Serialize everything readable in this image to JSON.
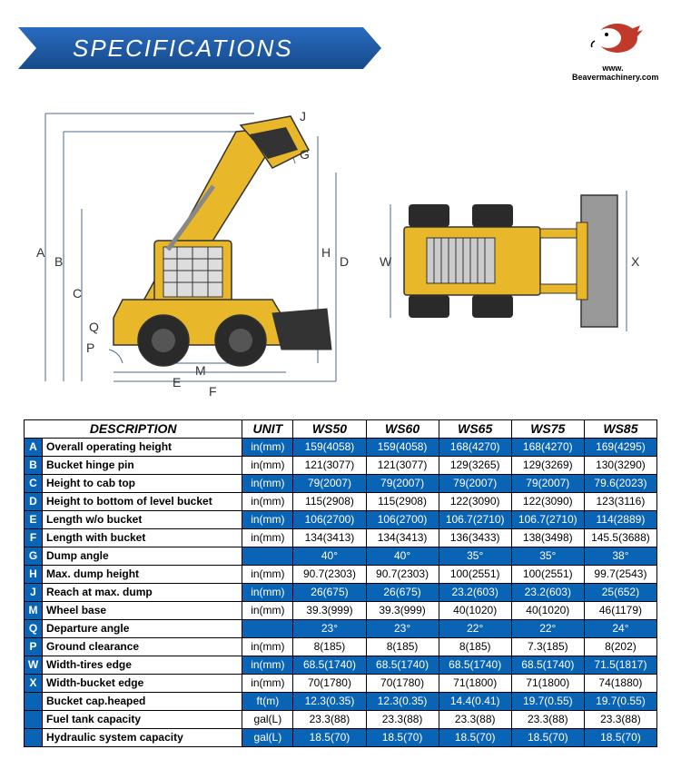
{
  "header": {
    "title": "SPECIFICATIONS",
    "logo_url": "Beavermachinery.com",
    "logo_prefix": "www."
  },
  "colors": {
    "banner_gradient_start": "#154a8a",
    "banner_gradient_end": "#2a6cc0",
    "table_blue": "#0a64b5",
    "machine_yellow": "#e8b82a",
    "machine_dark": "#333333",
    "dim_line": "#4a6a8a"
  },
  "diagram": {
    "labels": [
      "A",
      "B",
      "C",
      "D",
      "E",
      "F",
      "G",
      "H",
      "J",
      "M",
      "P",
      "Q",
      "W",
      "X"
    ]
  },
  "table": {
    "headers": [
      "DESCRIPTION",
      "UNIT",
      "WS50",
      "WS60",
      "WS65",
      "WS75",
      "WS85"
    ],
    "rows": [
      {
        "letter": "A",
        "desc": "Overall operating height",
        "unit": "in(mm)",
        "vals": [
          "159(4058)",
          "159(4058)",
          "168(4270)",
          "168(4270)",
          "169(4295)"
        ],
        "blue": true
      },
      {
        "letter": "B",
        "desc": "Bucket hinge pin",
        "unit": "in(mm)",
        "vals": [
          "121(3077)",
          "121(3077)",
          "129(3265)",
          "129(3269)",
          "130(3290)"
        ],
        "blue": false
      },
      {
        "letter": "C",
        "desc": "Height to cab top",
        "unit": "in(mm)",
        "vals": [
          "79(2007)",
          "79(2007)",
          "79(2007)",
          "79(2007)",
          "79.6(2023)"
        ],
        "blue": true
      },
      {
        "letter": "D",
        "desc": "Height to bottom of level bucket",
        "unit": "in(mm)",
        "vals": [
          "115(2908)",
          "115(2908)",
          "122(3090)",
          "122(3090)",
          "123(3116)"
        ],
        "blue": false
      },
      {
        "letter": "E",
        "desc": "Length w/o bucket",
        "unit": "in(mm)",
        "vals": [
          "106(2700)",
          "106(2700)",
          "106.7(2710)",
          "106.7(2710)",
          "114(2889)"
        ],
        "blue": true
      },
      {
        "letter": "F",
        "desc": "Length with bucket",
        "unit": "in(mm)",
        "vals": [
          "134(3413)",
          "134(3413)",
          "136(3433)",
          "138(3498)",
          "145.5(3688)"
        ],
        "blue": false
      },
      {
        "letter": "G",
        "desc": "Dump angle",
        "unit": "",
        "vals": [
          "40°",
          "40°",
          "35°",
          "35°",
          "38°"
        ],
        "blue": true
      },
      {
        "letter": "H",
        "desc": "Max. dump height",
        "unit": "in(mm)",
        "vals": [
          "90.7(2303)",
          "90.7(2303)",
          "100(2551)",
          "100(2551)",
          "99.7(2543)"
        ],
        "blue": false
      },
      {
        "letter": "J",
        "desc": "Reach at max. dump",
        "unit": "in(mm)",
        "vals": [
          "26(675)",
          "26(675)",
          "23.2(603)",
          "23.2(603)",
          "25(652)"
        ],
        "blue": true
      },
      {
        "letter": "M",
        "desc": "Wheel base",
        "unit": "in(mm)",
        "vals": [
          "39.3(999)",
          "39.3(999)",
          "40(1020)",
          "40(1020)",
          "46(1179)"
        ],
        "blue": false
      },
      {
        "letter": "Q",
        "desc": "Departure angle",
        "unit": "",
        "vals": [
          "23°",
          "23°",
          "22°",
          "22°",
          "24°"
        ],
        "blue": true
      },
      {
        "letter": "P",
        "desc": "Ground clearance",
        "unit": "in(mm)",
        "vals": [
          "8(185)",
          "8(185)",
          "8(185)",
          "7.3(185)",
          "8(202)"
        ],
        "blue": false
      },
      {
        "letter": "W",
        "desc": "Width-tires edge",
        "unit": "in(mm)",
        "vals": [
          "68.5(1740)",
          "68.5(1740)",
          "68.5(1740)",
          "68.5(1740)",
          "71.5(1817)"
        ],
        "blue": true
      },
      {
        "letter": "X",
        "desc": "Width-bucket edge",
        "unit": "in(mm)",
        "vals": [
          "70(1780)",
          "70(1780)",
          "71(1800)",
          "71(1800)",
          "74(1880)"
        ],
        "blue": false
      },
      {
        "letter": "",
        "desc": "Bucket cap.heaped",
        "unit": "ft(m)",
        "vals": [
          "12.3(0.35)",
          "12.3(0.35)",
          "14.4(0.41)",
          "19.7(0.55)",
          "19.7(0.55)"
        ],
        "blue": true
      },
      {
        "letter": "",
        "desc": "Fuel tank capacity",
        "unit": "gal(L)",
        "vals": [
          "23.3(88)",
          "23.3(88)",
          "23.3(88)",
          "23.3(88)",
          "23.3(88)"
        ],
        "blue": false
      },
      {
        "letter": "",
        "desc": "Hydraulic system capacity",
        "unit": "gal(L)",
        "vals": [
          "18.5(70)",
          "18.5(70)",
          "18.5(70)",
          "18.5(70)",
          "18.5(70)"
        ],
        "blue": true
      }
    ]
  }
}
